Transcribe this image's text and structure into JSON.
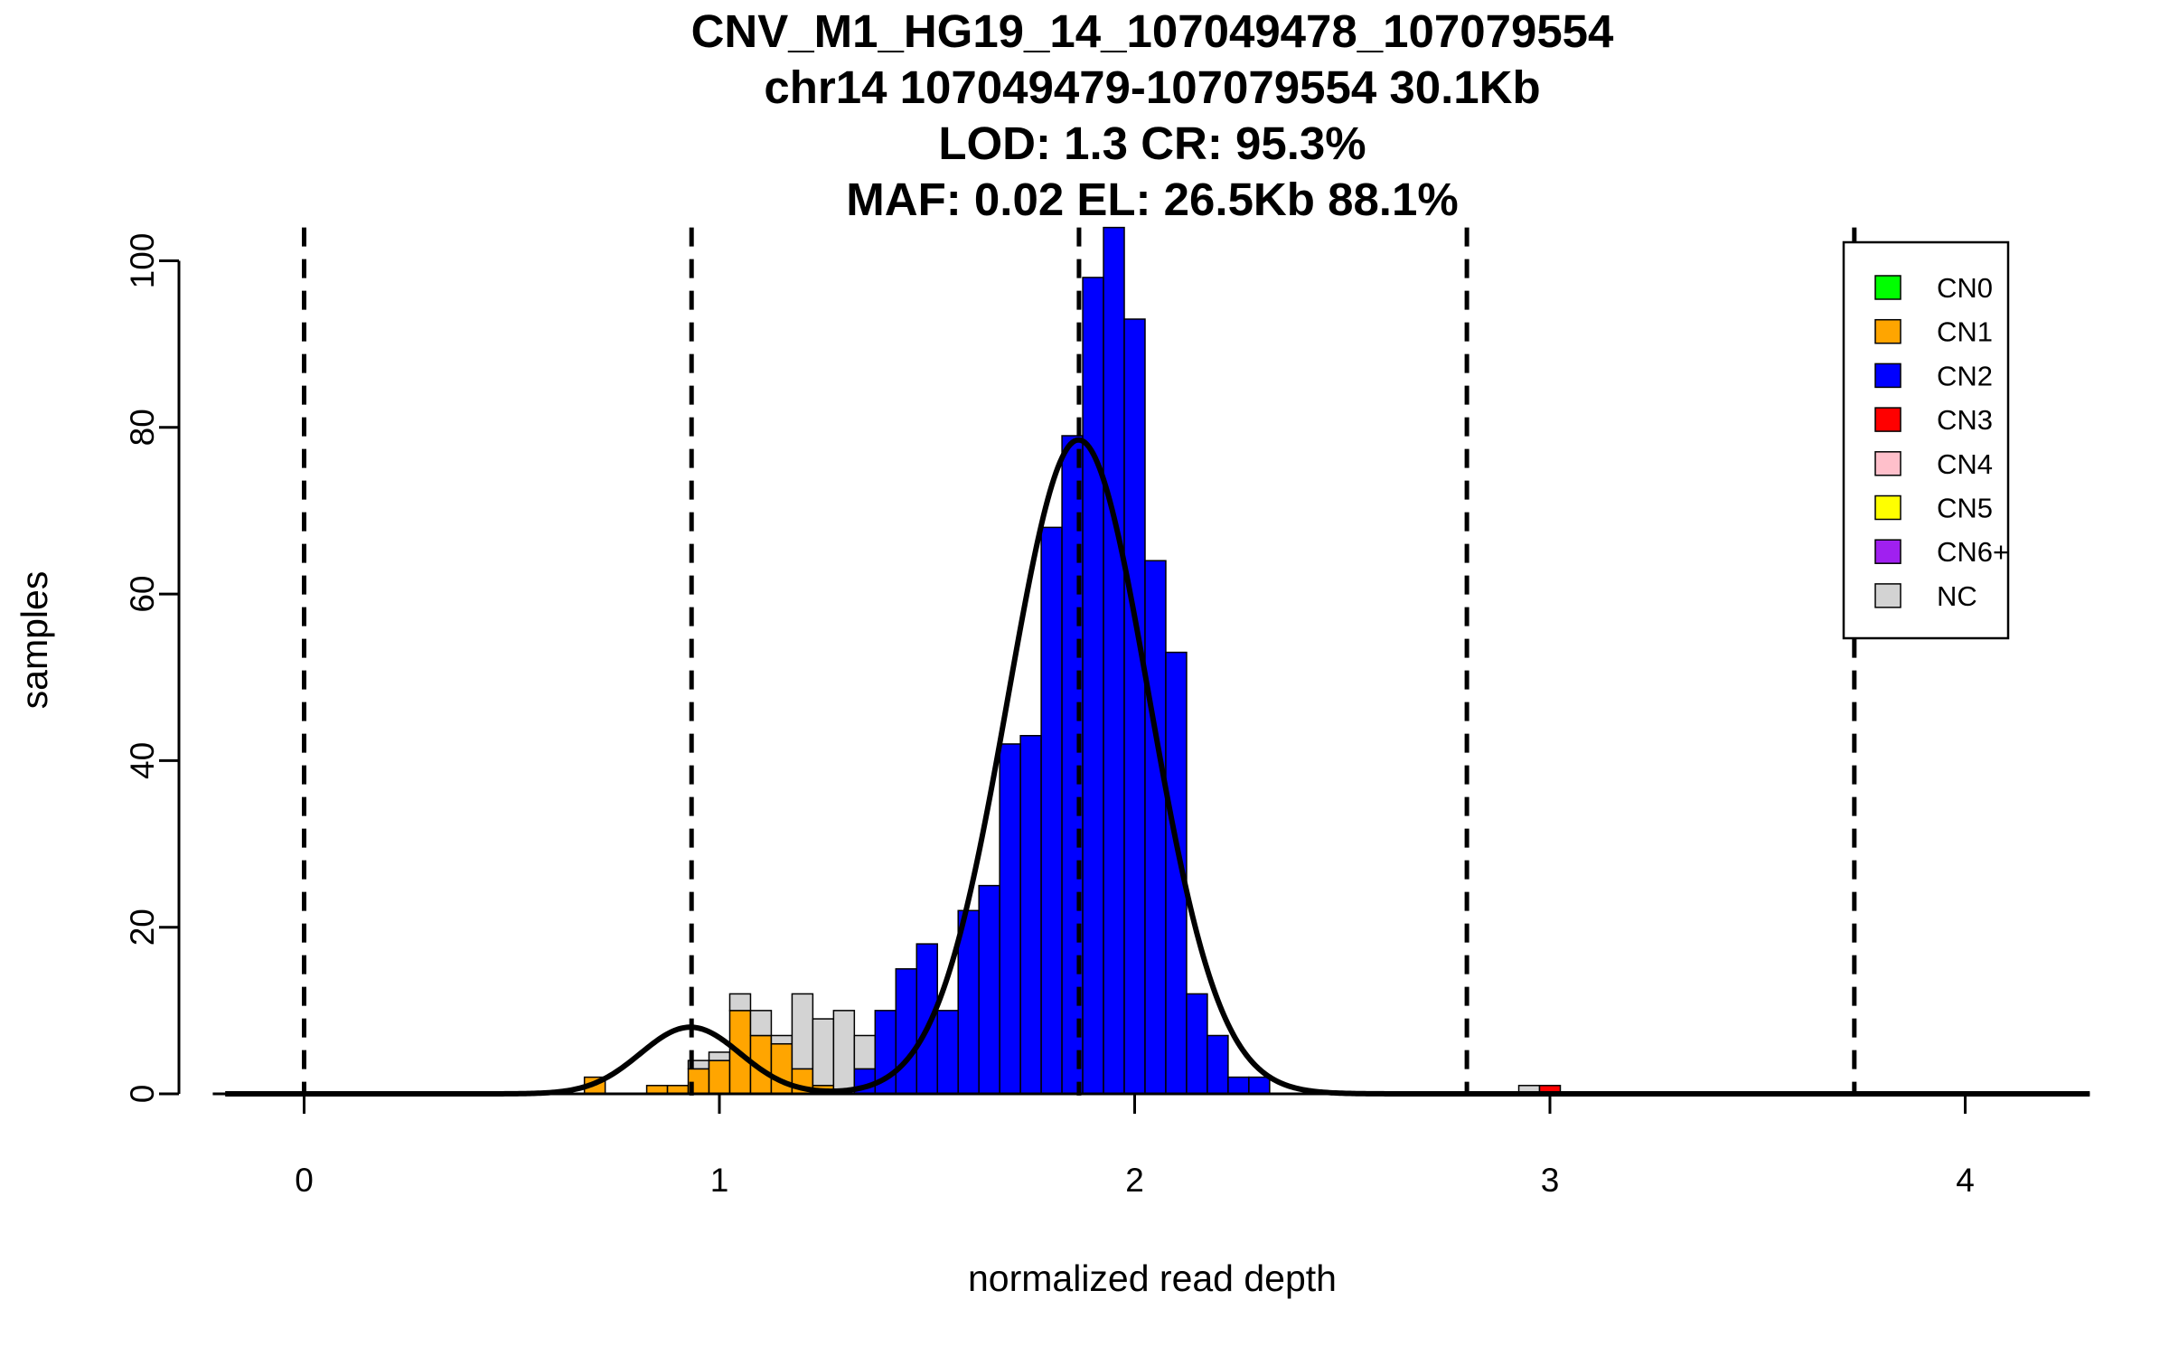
{
  "chart_data": {
    "type": "bar",
    "title_lines": [
      "CNV_M1_HG19_14_107049478_107079554",
      "chr14 107049479-107079554 30.1Kb",
      "LOD: 1.3 CR: 95.3%",
      "MAF: 0.02 EL: 26.5Kb 88.1%"
    ],
    "xlabel": "normalized read depth",
    "ylabel": "samples",
    "xlim": [
      -0.19,
      4.3
    ],
    "ylim": [
      0,
      104
    ],
    "x_ticks": [
      "0",
      "1",
      "2",
      "3",
      "4"
    ],
    "y_ticks": [
      "0",
      "20",
      "40",
      "60",
      "80",
      "100"
    ],
    "bin_width": 0.05,
    "colors": {
      "CN0": "#00ff00",
      "CN1": "#ffa500",
      "CN2": "#0000ff",
      "CN3": "#ff0000",
      "CN4": "#ffc0cb",
      "CN5": "#ffff00",
      "CN6+": "#a020f0",
      "NC": "#d3d3d3"
    },
    "legend": [
      "CN0",
      "CN1",
      "CN2",
      "CN3",
      "CN4",
      "CN5",
      "CN6+",
      "NC"
    ],
    "bars": [
      {
        "x0": 0.675,
        "segments": [
          {
            "cn": "CN1",
            "count": 2
          }
        ]
      },
      {
        "x0": 0.825,
        "segments": [
          {
            "cn": "CN1",
            "count": 1
          }
        ]
      },
      {
        "x0": 0.875,
        "segments": [
          {
            "cn": "CN1",
            "count": 1
          }
        ]
      },
      {
        "x0": 0.925,
        "segments": [
          {
            "cn": "CN1",
            "count": 3
          },
          {
            "cn": "NC",
            "count": 1
          }
        ]
      },
      {
        "x0": 0.975,
        "segments": [
          {
            "cn": "CN1",
            "count": 4
          },
          {
            "cn": "NC",
            "count": 1
          }
        ]
      },
      {
        "x0": 1.025,
        "segments": [
          {
            "cn": "CN1",
            "count": 10
          },
          {
            "cn": "NC",
            "count": 2
          }
        ]
      },
      {
        "x0": 1.075,
        "segments": [
          {
            "cn": "CN1",
            "count": 7
          },
          {
            "cn": "NC",
            "count": 3
          }
        ]
      },
      {
        "x0": 1.125,
        "segments": [
          {
            "cn": "CN1",
            "count": 6
          },
          {
            "cn": "NC",
            "count": 1
          }
        ]
      },
      {
        "x0": 1.175,
        "segments": [
          {
            "cn": "CN1",
            "count": 3
          },
          {
            "cn": "NC",
            "count": 9
          }
        ]
      },
      {
        "x0": 1.225,
        "segments": [
          {
            "cn": "CN1",
            "count": 1
          },
          {
            "cn": "NC",
            "count": 8
          }
        ]
      },
      {
        "x0": 1.275,
        "segments": [
          {
            "cn": "NC",
            "count": 10
          }
        ]
      },
      {
        "x0": 1.325,
        "segments": [
          {
            "cn": "CN2",
            "count": 3
          },
          {
            "cn": "NC",
            "count": 4
          }
        ]
      },
      {
        "x0": 1.375,
        "segments": [
          {
            "cn": "CN2",
            "count": 10
          }
        ]
      },
      {
        "x0": 1.425,
        "segments": [
          {
            "cn": "CN2",
            "count": 15
          }
        ]
      },
      {
        "x0": 1.475,
        "segments": [
          {
            "cn": "CN2",
            "count": 18
          }
        ]
      },
      {
        "x0": 1.525,
        "segments": [
          {
            "cn": "CN2",
            "count": 10
          }
        ]
      },
      {
        "x0": 1.575,
        "segments": [
          {
            "cn": "CN2",
            "count": 22
          }
        ]
      },
      {
        "x0": 1.625,
        "segments": [
          {
            "cn": "CN2",
            "count": 25
          }
        ]
      },
      {
        "x0": 1.675,
        "segments": [
          {
            "cn": "CN2",
            "count": 42
          }
        ]
      },
      {
        "x0": 1.725,
        "segments": [
          {
            "cn": "CN2",
            "count": 43
          }
        ]
      },
      {
        "x0": 1.775,
        "segments": [
          {
            "cn": "CN2",
            "count": 68
          }
        ]
      },
      {
        "x0": 1.825,
        "segments": [
          {
            "cn": "CN2",
            "count": 79
          }
        ]
      },
      {
        "x0": 1.875,
        "segments": [
          {
            "cn": "CN2",
            "count": 98
          }
        ]
      },
      {
        "x0": 1.925,
        "segments": [
          {
            "cn": "CN2",
            "count": 104
          }
        ]
      },
      {
        "x0": 1.975,
        "segments": [
          {
            "cn": "CN2",
            "count": 93
          }
        ]
      },
      {
        "x0": 2.025,
        "segments": [
          {
            "cn": "CN2",
            "count": 64
          }
        ]
      },
      {
        "x0": 2.075,
        "segments": [
          {
            "cn": "CN2",
            "count": 53
          }
        ]
      },
      {
        "x0": 2.125,
        "segments": [
          {
            "cn": "CN2",
            "count": 12
          }
        ]
      },
      {
        "x0": 2.175,
        "segments": [
          {
            "cn": "CN2",
            "count": 7
          }
        ]
      },
      {
        "x0": 2.225,
        "segments": [
          {
            "cn": "CN2",
            "count": 2
          }
        ]
      },
      {
        "x0": 2.275,
        "segments": [
          {
            "cn": "CN2",
            "count": 2
          }
        ]
      },
      {
        "x0": 2.925,
        "segments": [
          {
            "cn": "NC",
            "count": 1
          }
        ]
      },
      {
        "x0": 2.975,
        "segments": [
          {
            "cn": "CN3",
            "count": 1
          }
        ]
      }
    ],
    "gaussians": [
      {
        "mean": 0.93,
        "sd": 0.12,
        "peak": 8
      },
      {
        "mean": 1.865,
        "sd": 0.17,
        "peak": 78.5
      }
    ],
    "curve_x_range": [
      -0.19,
      4.3
    ],
    "dashed_vlines": [
      0,
      0.933,
      1.866,
      2.8,
      3.733
    ]
  }
}
